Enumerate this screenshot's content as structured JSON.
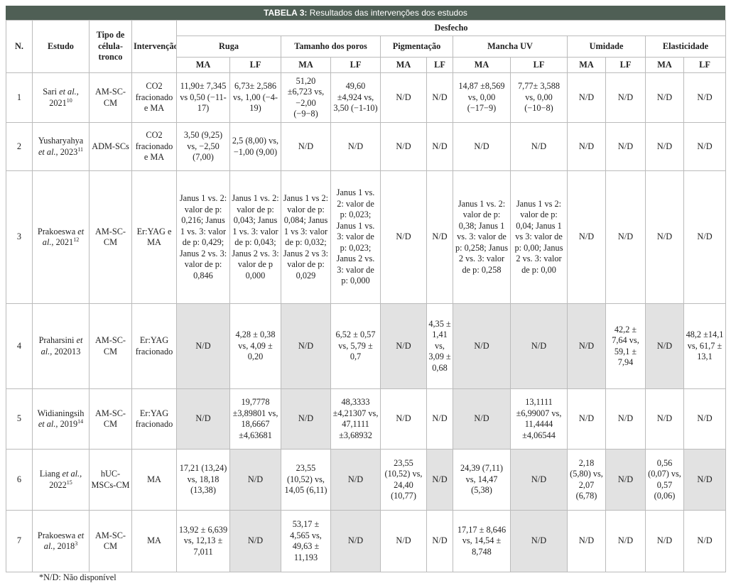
{
  "header": {
    "title_label": "TABELA 3:",
    "title": "Resultados das intervenções dos estudos"
  },
  "table": {
    "columns": {
      "n": "N.",
      "study": "Estudo",
      "cell_type": "Tipo de célula-tronco",
      "intervention": "Intervenção",
      "outcome": "Desfecho"
    },
    "groups": [
      "Ruga",
      "Tamanho dos poros",
      "Pigmentação",
      "Mancha UV",
      "Umidade",
      "Elasticidade"
    ],
    "subheads": [
      "MA",
      "LF"
    ],
    "rows": [
      {
        "n": "1",
        "study": {
          "author": "Sari",
          "etal": "et al.,",
          "year": "2021",
          "ref": "10"
        },
        "cell_type": "AM-SC-CM",
        "intervention": "CO2 fracionado e MA",
        "results": [
          "11,90± 7,345 vs 0,50 (−11-17)",
          "6,73± 2,586 vs, 1,00 (−4-19)",
          "51,20 ±6,723 vs, −2,00 (−9−8)",
          "49,60 ±4,924 vs, 3,50 (−1-10)",
          "N/D",
          "N/D",
          "14,87 ±8,569 vs, 0,00 (−17−9)",
          "7,77± 3,588 vs, 0,00 (−10−8)",
          "N/D",
          "N/D",
          "N/D",
          "N/D"
        ],
        "shaded": []
      },
      {
        "n": "2",
        "study": {
          "author": "Yusharyahya",
          "etal": "et al.,",
          "year": "2023",
          "ref": "11"
        },
        "cell_type": "ADM-SCs",
        "intervention": "CO2 fracionado e MA",
        "results": [
          "3,50 (9,25) vs, −2,50 (7,00)",
          "2,5 (8,00) vs, −1,00 (9,00)",
          "N/D",
          "N/D",
          "N/D",
          "N/D",
          "N/D",
          "N/D",
          "N/D",
          "N/D",
          "N/D",
          "N/D"
        ],
        "shaded": []
      },
      {
        "n": "3",
        "study": {
          "author": "Prakoeswa",
          "etal": "et al.,",
          "year": "2021",
          "ref": "12"
        },
        "cell_type": "AM-SC-CM",
        "intervention": "Er:YAG e MA",
        "results": [
          "Janus 1 vs. 2: valor de p: 0,216; Janus 1 vs. 3: valor de p: 0,429; Janus 2 vs. 3: valor de p: 0,846",
          "Janus 1 vs. 2: valor de p: 0,043; Janus 1 vs. 3: valor de p: 0,043; Janus 2 vs. 3: valor de p 0,000",
          "Janus 1 vs 2: valor de p: 0,084; Janus 1 vs 3: valor de p: 0,032; Janus 2 vs 3: valor de p: 0,029",
          "Janus 1 vs. 2: valor de p: 0,023; Janus 1 vs. 3: valor de p: 0,023; Janus 2 vs. 3: valor de p: 0,000",
          "N/D",
          "N/D",
          "Janus 1 vs. 2: valor de p: 0,38; Janus 1 vs. 3: valor de p: 0,258; Janus 2 vs. 3: valor de p: 0,258",
          "Janus 1 vs 2: valor de p: 0,04; Janus 1 vs 3: valor de p: 0,00; Janus 2 vs. 3: valor de p: 0,00",
          "N/D",
          "N/D",
          "N/D",
          "N/D"
        ],
        "shaded": []
      },
      {
        "n": "4",
        "study": {
          "author": "Praharsini",
          "etal": "et al.,",
          "year": "202013"
        },
        "cell_type": "AM-SC-CM",
        "intervention": "Er:YAG fracionado",
        "results": [
          "N/D",
          "4,28 ± 0,38 vs, 4,09 ± 0,20",
          "N/D",
          "6,52 ± 0,57 vs, 5,79 ± 0,7",
          "N/D",
          "4,35 ± 1,41 vs, 3,09 ± 0,68",
          "N/D",
          "N/D",
          "N/D",
          "42,2 ± 7,64 vs, 59,1 ± 7,94",
          "N/D",
          "48,2 ±14,1 vs, 61,7 ± 13,1"
        ],
        "shaded": [
          0,
          2,
          4,
          6,
          7,
          8,
          10
        ]
      },
      {
        "n": "5",
        "study": {
          "author": "Widianingsih",
          "etal": "et al.,",
          "year": "2019",
          "ref": "14"
        },
        "cell_type": "AM-SC-CM",
        "intervention": "Er:YAG fracionado",
        "results": [
          "N/D",
          "19,7778 ±3,89801 vs, 18,6667 ±4,63681",
          "N/D",
          "48,3333 ±4,21307 vs, 47,1111 ±3,68932",
          "N/D",
          "N/D",
          "N/D",
          "13,1111 ±6,99007 vs, 11,4444 ±4,06544",
          "N/D",
          "N/D",
          "N/D",
          "N/D"
        ],
        "shaded": [
          0,
          2,
          6
        ]
      },
      {
        "n": "6",
        "study": {
          "author": "Liang",
          "etal": "et al.,",
          "year": "2022",
          "ref": "15"
        },
        "cell_type": "hUC-MSCs-CM",
        "intervention": "MA",
        "results": [
          "17,21 (13,24) vs, 18,18 (13,38)",
          "N/D",
          "23,55 (10,52) vs, 14,05 (6,11)",
          "N/D",
          "23,55 (10,52) vs, 24,40 (10,77)",
          "N/D",
          "24,39 (7,11) vs, 14,47 (5,38)",
          "N/D",
          "2,18 (5,80) vs, 2,07 (6,78)",
          "N/D",
          "0,56 (0,07) vs, 0,57 (0,06)",
          "N/D"
        ],
        "shaded": [
          1,
          3,
          5,
          7,
          9,
          11
        ]
      },
      {
        "n": "7",
        "study": {
          "author": "Prakoeswa",
          "etal": "et al.,",
          "year": "2018",
          "ref": "3"
        },
        "cell_type": "AM-SC-CM",
        "intervention": "MA",
        "results": [
          "13,92 ± 6,639 vs, 12,13 ± 7,011",
          "N/D",
          "53,17 ± 4,565 vs, 49,63 ± 11,193",
          "N/D",
          "N/D",
          "N/D",
          "17,17 ± 8,646 vs, 14,54 ± 8,748",
          "N/D",
          "N/D",
          "N/D",
          "N/D",
          "N/D"
        ],
        "shaded": [
          1,
          3,
          7
        ]
      }
    ]
  },
  "footnote": "*N/D: Não disponível"
}
